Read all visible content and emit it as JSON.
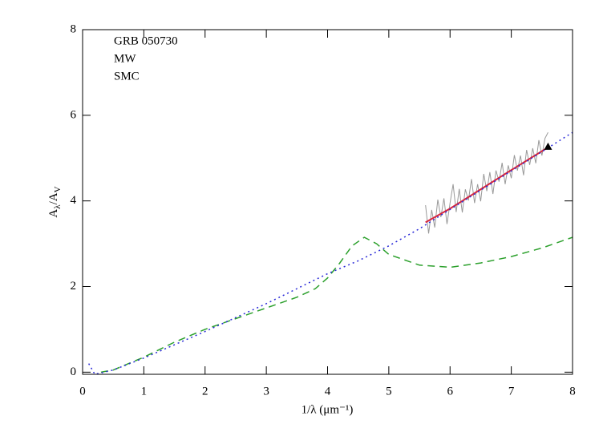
{
  "chart_data": {
    "type": "line",
    "xlabel": "1/λ (μm⁻¹)",
    "ylabel_parts": [
      "A",
      "λ",
      "/A",
      "V"
    ],
    "xlim": [
      0,
      8
    ],
    "ylim": [
      -0.05,
      8
    ],
    "xticks": [
      0,
      1,
      2,
      3,
      4,
      5,
      6,
      7,
      8
    ],
    "yticks": [
      0,
      2,
      4,
      6,
      8
    ],
    "series": [
      {
        "name": "GRB 050730",
        "color": "#d7263d",
        "style": "solid",
        "x": [
          5.6,
          6,
          6.5,
          7,
          7.6
        ],
        "values": [
          3.5,
          3.82,
          4.27,
          4.72,
          5.25
        ]
      },
      {
        "name": "MW",
        "color": "#2ca02c",
        "style": "dashed",
        "x": [
          0.3,
          0.5,
          1,
          1.5,
          2,
          2.5,
          3,
          3.5,
          3.8,
          4.0,
          4.2,
          4.4,
          4.6,
          4.8,
          5.0,
          5.5,
          6,
          6.5,
          7,
          7.5,
          8
        ],
        "values": [
          0,
          0.05,
          0.35,
          0.7,
          1.0,
          1.25,
          1.5,
          1.75,
          1.95,
          2.2,
          2.55,
          2.95,
          3.15,
          3.0,
          2.75,
          2.5,
          2.45,
          2.55,
          2.7,
          2.9,
          3.15
        ]
      },
      {
        "name": "SMC",
        "color": "#2a2ad8",
        "style": "dotted",
        "x": [
          0.1,
          0.2,
          0.5,
          1,
          2,
          3,
          4,
          4.5,
          5,
          5.5,
          6,
          6.5,
          7,
          7.5,
          8
        ],
        "values": [
          0.2,
          -0.05,
          0.05,
          0.33,
          0.95,
          1.6,
          2.3,
          2.6,
          2.95,
          3.35,
          3.8,
          4.25,
          4.7,
          5.15,
          5.6
        ]
      }
    ],
    "spectrum": {
      "color": "#999999",
      "x": [
        5.6,
        5.65,
        5.7,
        5.75,
        5.8,
        5.85,
        5.9,
        5.95,
        6,
        6.05,
        6.1,
        6.15,
        6.2,
        6.25,
        6.3,
        6.35,
        6.4,
        6.45,
        6.5,
        6.55,
        6.6,
        6.65,
        6.7,
        6.75,
        6.8,
        6.85,
        6.9,
        6.95,
        7,
        7.05,
        7.1,
        7.15,
        7.2,
        7.25,
        7.3,
        7.35,
        7.4,
        7.45,
        7.5,
        7.55,
        7.6
      ],
      "values": [
        3.9,
        3.24,
        3.79,
        3.38,
        4.03,
        3.62,
        4.06,
        3.46,
        3.95,
        4.39,
        3.74,
        4.28,
        3.73,
        4.27,
        4.01,
        4.51,
        3.95,
        4.39,
        3.99,
        4.63,
        4.23,
        4.67,
        4.16,
        4.71,
        4.45,
        4.89,
        4.39,
        4.83,
        4.53,
        5.07,
        4.71,
        5.06,
        4.6,
        5.19,
        4.84,
        5.23,
        4.88,
        5.42,
        5.06,
        5.46,
        5.6
      ]
    },
    "marker": {
      "x": 7.6,
      "y": 5.25,
      "color": "#000000"
    }
  }
}
